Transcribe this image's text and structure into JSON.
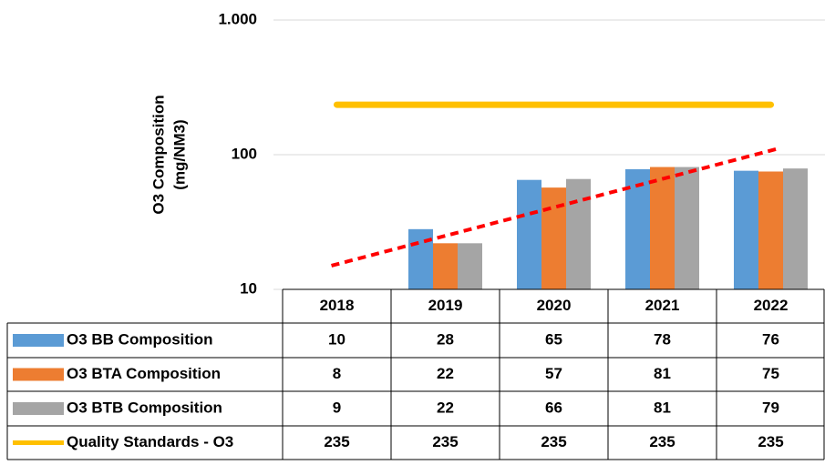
{
  "chart_data": {
    "type": "bar",
    "ylabel": [
      "O3 Composition",
      "(mg/NM3)"
    ],
    "categories": [
      "2018",
      "2019",
      "2020",
      "2021",
      "2022"
    ],
    "series": [
      {
        "name": "O3 BB Composition",
        "color": "#5b9bd5",
        "values": [
          10,
          28,
          65,
          78,
          76
        ]
      },
      {
        "name": "O3 BTA Composition",
        "color": "#ed7d31",
        "values": [
          8,
          22,
          57,
          81,
          75
        ]
      },
      {
        "name": "O3 BTB Composition",
        "color": "#a5a5a5",
        "values": [
          9,
          22,
          66,
          81,
          79
        ]
      },
      {
        "name": "Quality Standards - O3",
        "type": "line",
        "color": "#ffc000",
        "values": [
          235,
          235,
          235,
          235,
          235
        ]
      }
    ],
    "trendline": {
      "color": "#ff0000",
      "start": 15,
      "end": 110
    },
    "log_scale": true,
    "grid": true,
    "ylim": [
      10,
      1000
    ],
    "yticks": [
      10,
      100,
      {
        "value": 1000,
        "label": "1.000"
      }
    ]
  }
}
